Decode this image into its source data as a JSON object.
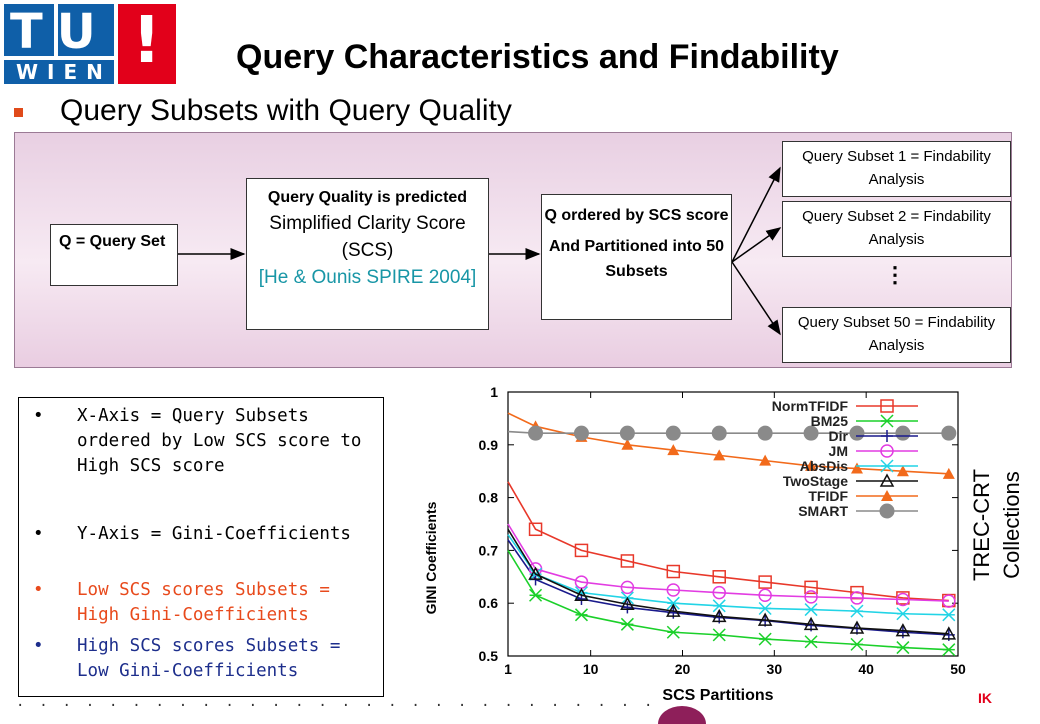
{
  "logo": {
    "letters_top": "TU",
    "letters_bottom": "WIEN",
    "mark": "!"
  },
  "title": "Query Characteristics and Findability",
  "subtitle": "Query Subsets with Query Quality",
  "flow": {
    "query_set": "Q = Query Set",
    "quality_bold": "Query Quality is predicted",
    "quality_metric": "Simplified Clarity Score (SCS)",
    "quality_cite": "[He & Ounis SPIRE 2004]",
    "ordered_1": "Q ordered by SCS score",
    "ordered_2": "And Partitioned into 50 Subsets",
    "subset_1": "Query Subset 1 = Findability Analysis",
    "subset_2": "Query Subset 2 = Findability Analysis",
    "subset_dots": "⋮",
    "subset_50": "Query Subset 50 = Findability Analysis"
  },
  "notes": [
    "X-Axis = Query Subsets ordered by Low SCS score to High SCS score",
    "Y-Axis = Gini-Coefficients",
    "Low SCS scores Subsets = High Gini-Coefficients",
    "High SCS scores Subsets = Low Gini-Coefficients"
  ],
  "colors": {
    "low": "#e84a1c",
    "high": "#1d2e8c",
    "accent": "#e2001a",
    "brand": "#0f5fa8"
  },
  "side_label": {
    "line1": "TREC-CRT",
    "line2": "Collections"
  },
  "footer_mark": "IK",
  "chart_data": {
    "type": "line",
    "xlabel": "SCS Partitions",
    "ylabel": "GINI Coefficients",
    "xlim": [
      1,
      50
    ],
    "ylim": [
      0.5,
      1.0
    ],
    "xticks": [
      1,
      10,
      20,
      30,
      40,
      50
    ],
    "yticks": [
      0.5,
      0.6,
      0.7,
      0.8,
      0.9,
      1.0
    ],
    "ytick_labels": [
      "0.5",
      "0.6",
      "0.7",
      "0.8",
      "0.9",
      "1"
    ],
    "legend": "top-right",
    "grid": false,
    "series": [
      {
        "name": "NormTFIDF",
        "color": "#e8382a",
        "marker": "square",
        "x": [
          1,
          4,
          9,
          14,
          19,
          24,
          29,
          34,
          39,
          44,
          49
        ],
        "y": [
          0.83,
          0.74,
          0.7,
          0.68,
          0.66,
          0.65,
          0.64,
          0.63,
          0.62,
          0.61,
          0.605
        ]
      },
      {
        "name": "BM25",
        "color": "#1bd02a",
        "marker": "x",
        "x": [
          1,
          4,
          9,
          14,
          19,
          24,
          29,
          34,
          39,
          44,
          49
        ],
        "y": [
          0.7,
          0.615,
          0.578,
          0.56,
          0.545,
          0.54,
          0.532,
          0.527,
          0.522,
          0.516,
          0.512
        ]
      },
      {
        "name": "Dir",
        "color": "#1a1a8c",
        "marker": "plus",
        "x": [
          1,
          4,
          9,
          14,
          19,
          24,
          29,
          34,
          39,
          44,
          49
        ],
        "y": [
          0.72,
          0.645,
          0.608,
          0.592,
          0.582,
          0.573,
          0.567,
          0.558,
          0.552,
          0.545,
          0.54
        ]
      },
      {
        "name": "JM",
        "color": "#e23ce2",
        "marker": "circle",
        "x": [
          1,
          4,
          9,
          14,
          19,
          24,
          29,
          34,
          39,
          44,
          49
        ],
        "y": [
          0.75,
          0.665,
          0.64,
          0.63,
          0.625,
          0.62,
          0.615,
          0.612,
          0.61,
          0.607,
          0.604
        ]
      },
      {
        "name": "AbsDis",
        "color": "#22d4e6",
        "marker": "x",
        "x": [
          1,
          4,
          9,
          14,
          19,
          24,
          29,
          34,
          39,
          44,
          49
        ],
        "y": [
          0.73,
          0.655,
          0.62,
          0.61,
          0.6,
          0.595,
          0.59,
          0.588,
          0.585,
          0.58,
          0.578
        ]
      },
      {
        "name": "TwoStage",
        "color": "#111111",
        "marker": "triangle-open",
        "x": [
          1,
          4,
          9,
          14,
          19,
          24,
          29,
          34,
          39,
          44,
          49
        ],
        "y": [
          0.74,
          0.655,
          0.615,
          0.598,
          0.585,
          0.575,
          0.568,
          0.56,
          0.553,
          0.548,
          0.542
        ]
      },
      {
        "name": "TFIDF",
        "color": "#f26a1b",
        "marker": "triangle",
        "x": [
          1,
          4,
          9,
          14,
          19,
          24,
          29,
          34,
          39,
          44,
          49
        ],
        "y": [
          0.96,
          0.935,
          0.915,
          0.9,
          0.89,
          0.88,
          0.87,
          0.86,
          0.855,
          0.85,
          0.845
        ]
      },
      {
        "name": "SMART",
        "color": "#8a8a8a",
        "marker": "circle-filled",
        "x": [
          1,
          4,
          9,
          14,
          19,
          24,
          29,
          34,
          39,
          44,
          49
        ],
        "y": [
          0.925,
          0.922,
          0.922,
          0.922,
          0.922,
          0.922,
          0.922,
          0.922,
          0.922,
          0.922,
          0.922
        ]
      }
    ]
  }
}
